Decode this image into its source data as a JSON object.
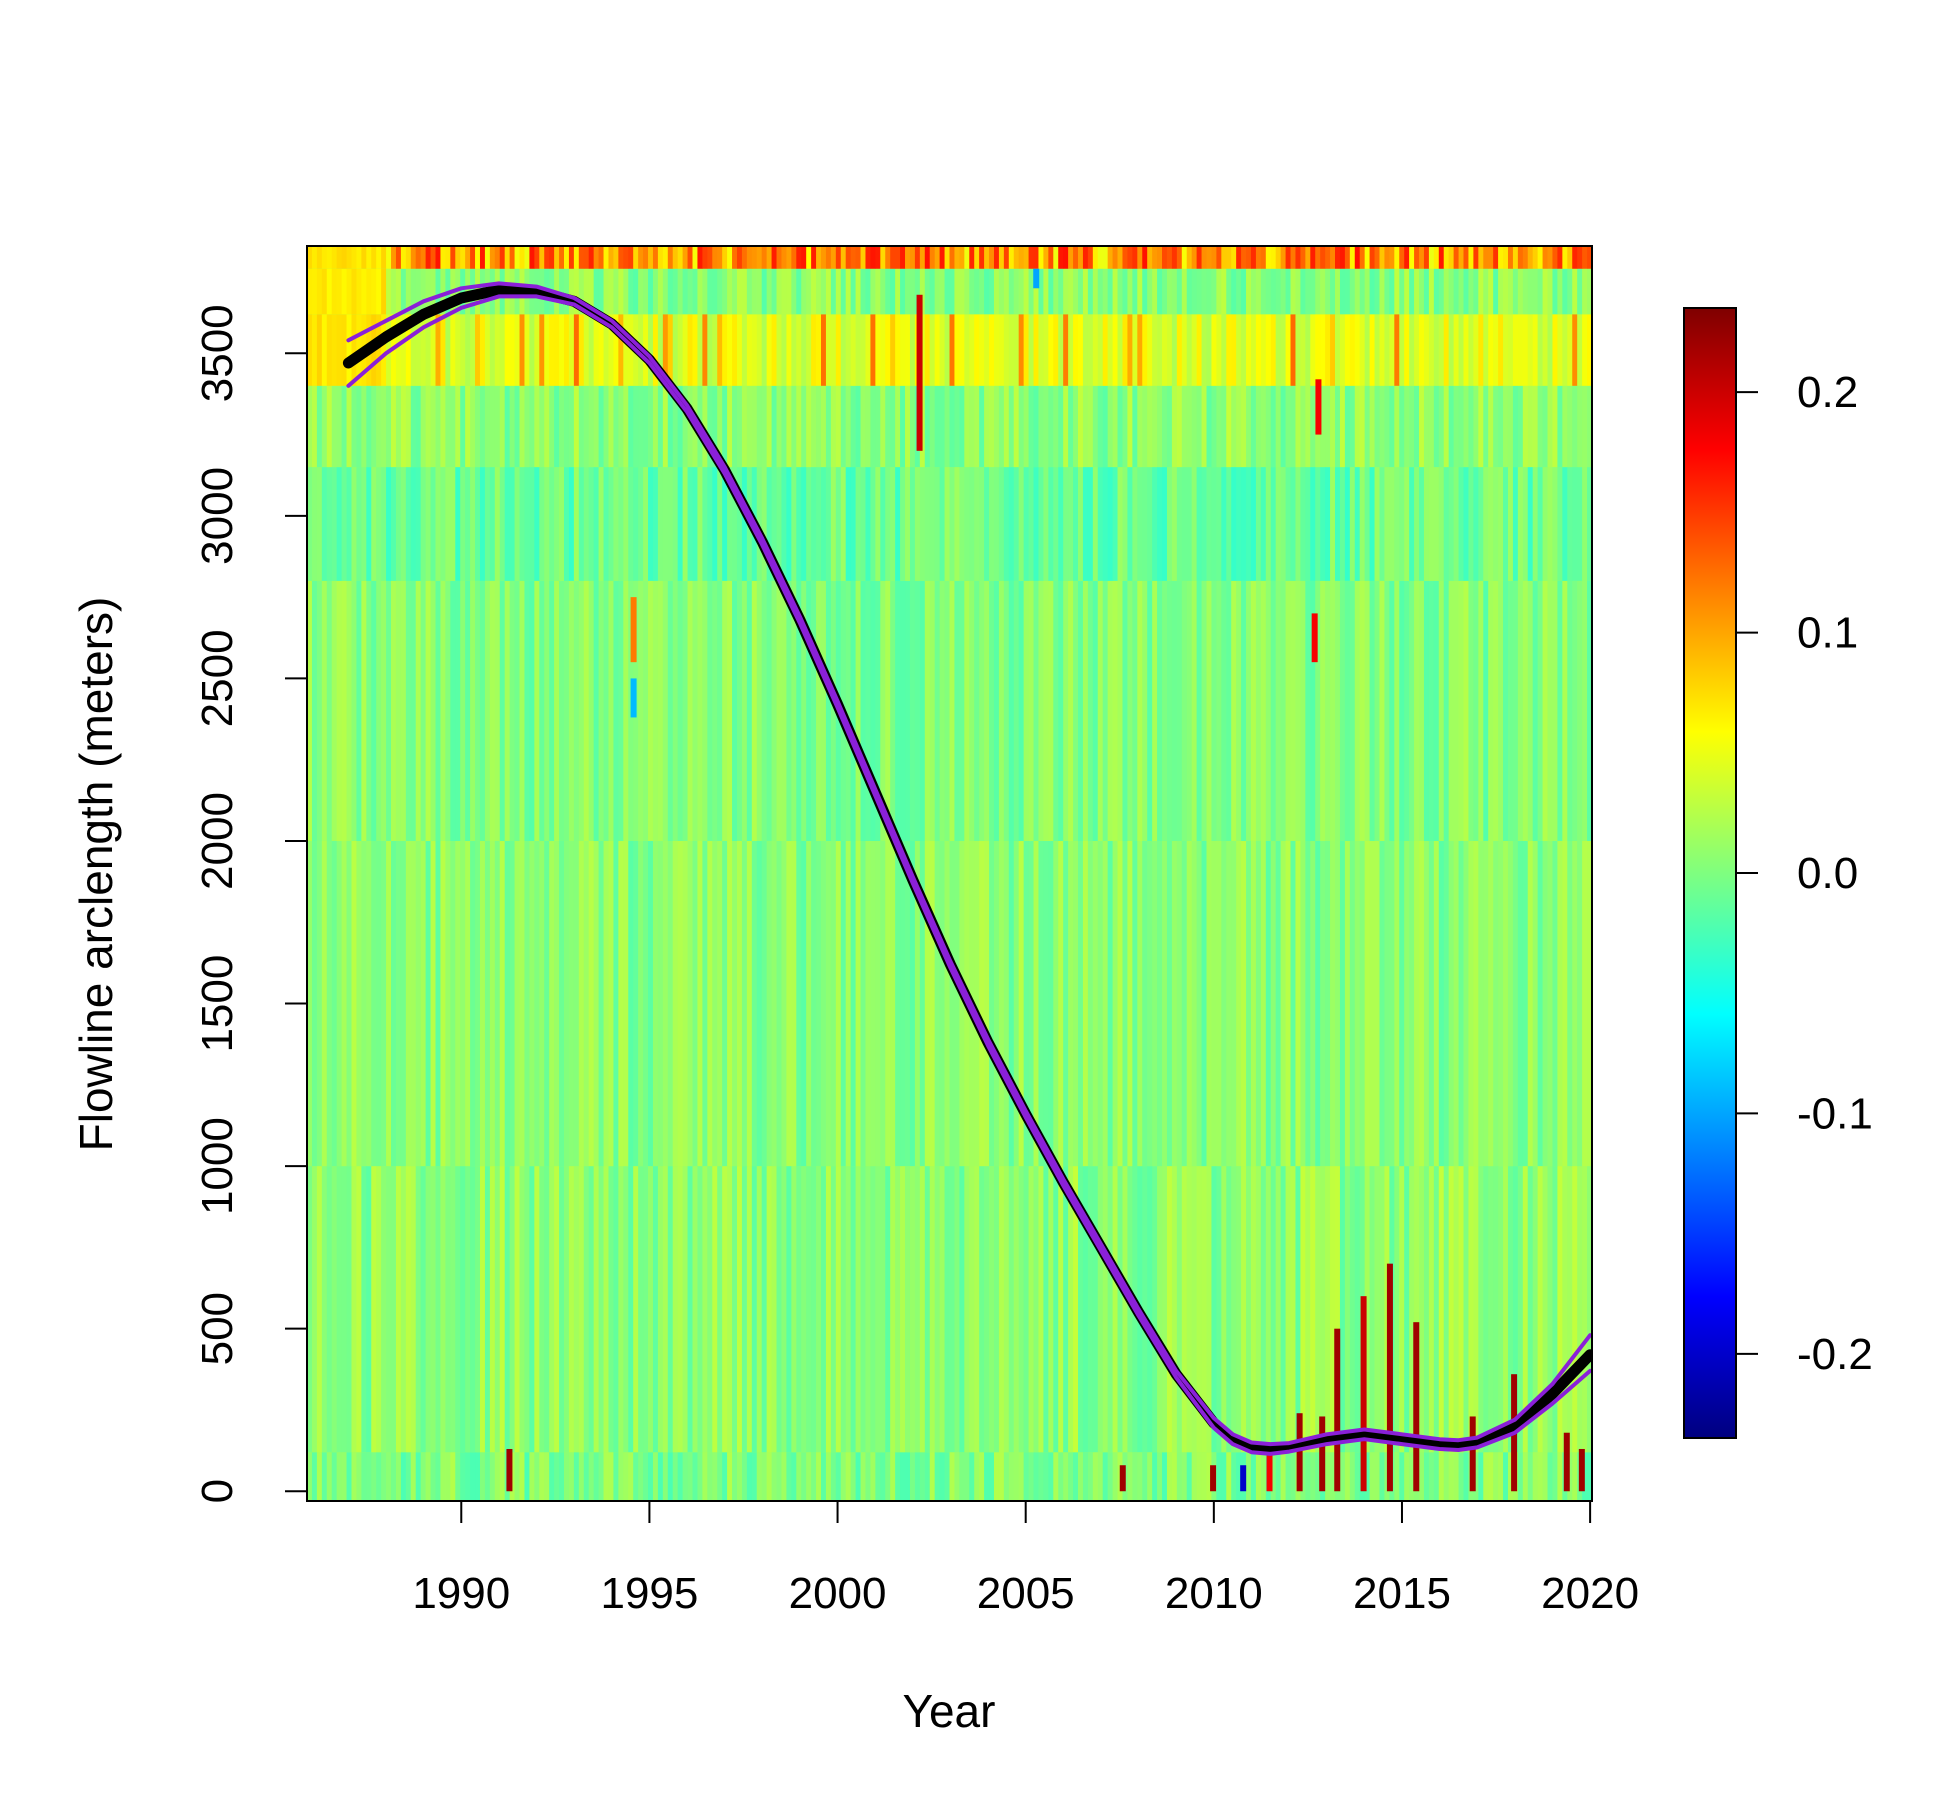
{
  "chart_data": {
    "type": "heatmap",
    "title": "",
    "xlabel": "Year",
    "ylabel": "Flowline arclength (meters)",
    "xlim": [
      1985.9,
      2020.05
    ],
    "ylim": [
      -30,
      3830
    ],
    "x_ticks": [
      "1990",
      "1995",
      "2000",
      "2005",
      "2010",
      "2015",
      "2020"
    ],
    "y_ticks": [
      "0",
      "500",
      "1000",
      "1500",
      "2000",
      "2500",
      "3000",
      "3500"
    ],
    "grid": false,
    "colorbar": {
      "palette": "jet",
      "range": [
        -0.235,
        0.235
      ],
      "colors": [
        "#00007f",
        "#0000ff",
        "#007fff",
        "#00ffff",
        "#7fff7f",
        "#ffff00",
        "#ff7f00",
        "#ff0000",
        "#7f0000"
      ],
      "ticks": [
        "-0.2",
        "-0.1",
        "0.0",
        "0.1",
        "0.2"
      ],
      "placement": "right"
    },
    "heatmap_description": "Values mostly near 0.0 to 0.03 across the domain; higher values (up to ~0.2) concentrated near the top (3400-3800 m) and sporadic dark red spikes near 0-700 m after 2010.",
    "series": [
      {
        "color": "#000000",
        "x": [
          1987.0,
          1988.0,
          1989.0,
          1990.0,
          1991.0,
          1992.0,
          1993.0,
          1994.0,
          1995.0,
          1996.0,
          1997.0,
          1998.0,
          1999.0,
          2000.0,
          2001.0,
          2002.0,
          2003.0,
          2004.0,
          2005.0,
          2006.0,
          2007.0,
          2008.0,
          2009.0,
          2010.0,
          2010.5,
          2011.0,
          2011.5,
          2012.0,
          2013.0,
          2014.0,
          2015.0,
          2016.0,
          2016.5,
          2017.0,
          2018.0,
          2019.0,
          2020.0
        ],
        "y": [
          3470,
          3550,
          3620,
          3670,
          3695,
          3690,
          3660,
          3590,
          3480,
          3330,
          3140,
          2920,
          2680,
          2420,
          2150,
          1880,
          1620,
          1380,
          1160,
          950,
          750,
          550,
          360,
          210,
          160,
          135,
          130,
          135,
          160,
          175,
          160,
          145,
          142,
          150,
          200,
          300,
          420
        ]
      },
      {
        "color": "#8a20d8",
        "x": [
          1987.0,
          1988.0,
          1989.0,
          1990.0,
          1991.0,
          1992.0,
          1993.0,
          1994.0,
          1995.0,
          1996.0,
          1997.0,
          1998.0,
          1999.0,
          2000.0,
          2001.0,
          2002.0,
          2003.0,
          2004.0,
          2005.0,
          2006.0,
          2007.0,
          2008.0,
          2009.0,
          2010.0,
          2010.5,
          2011.0,
          2011.5,
          2012.0,
          2013.0,
          2014.0,
          2015.0,
          2016.0,
          2016.5,
          2017.0,
          2018.0,
          2019.0,
          2020.0
        ],
        "y": [
          3540,
          3600,
          3660,
          3700,
          3715,
          3705,
          3670,
          3600,
          3490,
          3340,
          3150,
          2930,
          2690,
          2430,
          2160,
          1890,
          1630,
          1390,
          1170,
          960,
          760,
          560,
          370,
          225,
          175,
          150,
          145,
          148,
          175,
          190,
          175,
          160,
          157,
          165,
          220,
          330,
          480
        ]
      },
      {
        "color": "#8a20d8",
        "x": [
          1987.0,
          1988.0,
          1989.0,
          1990.0,
          1991.0,
          1992.0,
          1993.0,
          1994.0,
          1995.0,
          1996.0,
          1997.0,
          1998.0,
          1999.0,
          2000.0,
          2001.0,
          2002.0,
          2003.0,
          2004.0,
          2005.0,
          2006.0,
          2007.0,
          2008.0,
          2009.0,
          2010.0,
          2010.5,
          2011.0,
          2011.5,
          2012.0,
          2013.0,
          2014.0,
          2015.0,
          2016.0,
          2016.5,
          2017.0,
          2018.0,
          2019.0,
          2020.0
        ],
        "y": [
          3400,
          3500,
          3580,
          3640,
          3675,
          3675,
          3650,
          3580,
          3470,
          3320,
          3130,
          2910,
          2670,
          2410,
          2140,
          1870,
          1610,
          1370,
          1150,
          940,
          740,
          540,
          350,
          195,
          145,
          120,
          115,
          122,
          145,
          160,
          145,
          130,
          127,
          135,
          180,
          270,
          370
        ]
      }
    ]
  }
}
